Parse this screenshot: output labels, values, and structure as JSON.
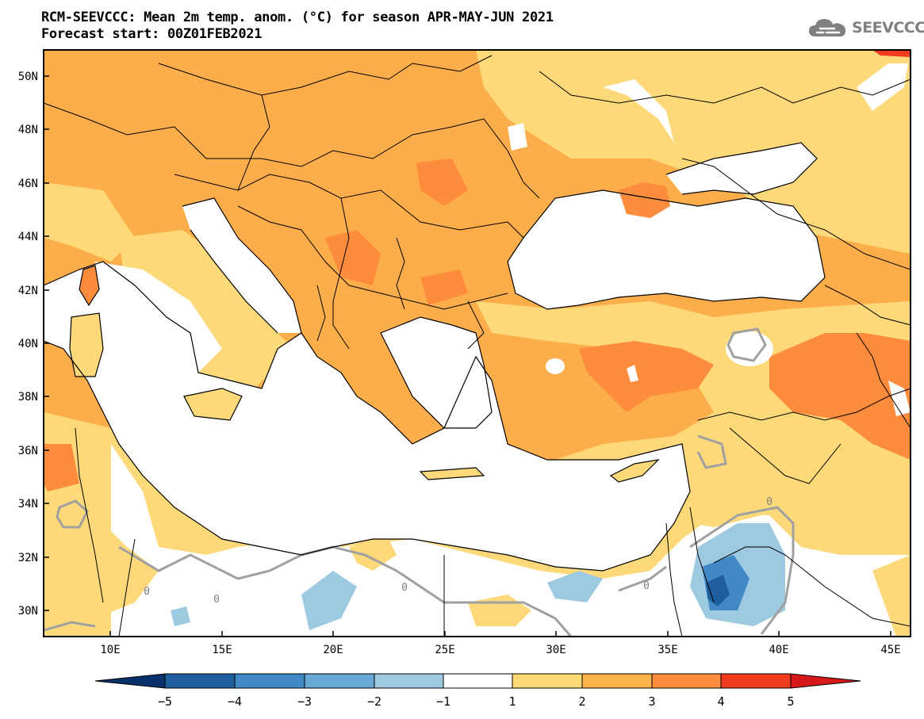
{
  "title_line1": "RCM-SEEVCCC: Mean 2m temp. anom. (°C) for season APR-MAY-JUN 2021",
  "title_line2": "Forecast start: 00Z01FEB2021",
  "logo_text": "SEEVCCC",
  "logo_icon": "cloud-icon",
  "lat_labels": [
    "50N",
    "48N",
    "46N",
    "44N",
    "42N",
    "40N",
    "38N",
    "36N",
    "34N",
    "32N",
    "30N"
  ],
  "lon_labels": [
    "10E",
    "15E",
    "20E",
    "25E",
    "30E",
    "35E",
    "40E",
    "45E"
  ],
  "contour_label": "0",
  "colorbar": {
    "ticks": [
      "−5",
      "−4",
      "−3",
      "−2",
      "−1",
      "1",
      "2",
      "3",
      "4",
      "5"
    ],
    "colors": [
      "#08306b",
      "#1f5fa0",
      "#4189c6",
      "#6aa8d8",
      "#9ecae1",
      "#ffffff",
      "#fed976",
      "#feb24c",
      "#fd8d3c",
      "#f03b20",
      "#d7191c"
    ]
  },
  "palette": {
    "cat_2_3": "#fdae4a",
    "cat_1_2": "#fed97a",
    "cat_3_4": "#fd8d3c",
    "cat_4_5": "#f03b20",
    "neg_1_2": "#9ecae1",
    "neg_2_3": "#4189c6",
    "neg_3_4": "#1f5fa0",
    "contour": "#a0a0a0",
    "water": "#ffffff"
  }
}
